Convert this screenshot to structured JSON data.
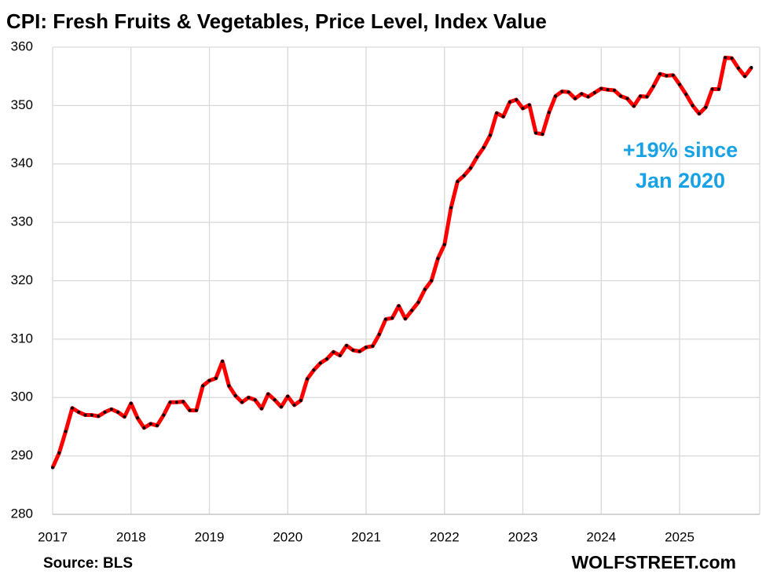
{
  "chart_data": {
    "type": "line",
    "title": "CPI: Fresh Fruits & Vegetables, Price Level, Index Value",
    "categories": [
      "2017",
      null,
      null,
      null,
      null,
      null,
      null,
      null,
      null,
      null,
      null,
      null,
      "2018",
      null,
      null,
      null,
      null,
      null,
      null,
      null,
      null,
      null,
      null,
      null,
      "2019",
      null,
      null,
      null,
      null,
      null,
      null,
      null,
      null,
      null,
      null,
      null,
      "2020",
      null,
      null,
      null,
      null,
      null,
      null,
      null,
      null,
      null,
      null,
      null,
      "2021",
      null,
      null,
      null,
      null,
      null,
      null,
      null,
      null,
      null,
      null,
      null,
      "2022",
      null,
      null,
      null,
      null,
      null,
      null,
      null,
      null,
      null,
      null,
      null,
      "2023",
      null,
      null,
      null,
      null,
      null,
      null,
      null,
      null,
      null,
      null,
      null,
      "2024",
      null,
      null,
      null,
      null,
      null,
      null,
      null,
      null,
      null,
      null,
      null,
      "2025",
      null,
      null,
      null,
      null,
      null,
      null,
      null,
      null,
      null,
      null,
      null
    ],
    "series": [
      {
        "name": "CPI: Fresh Fruits & Vegetables",
        "color": "#ff0000",
        "marker_color": "#000000",
        "values": [
          288,
          290.5,
          294.2,
          298.2,
          297.5,
          297,
          297,
          296.8,
          297.5,
          298,
          297.5,
          296.7,
          299,
          296.5,
          294.8,
          295.5,
          295.2,
          297,
          299.2,
          299.2,
          299.3,
          297.8,
          297.8,
          302,
          302.9,
          303.3,
          306.2,
          302,
          300.3,
          299.2,
          300,
          299.6,
          298.1,
          300.6,
          299.6,
          298.4,
          300.2,
          298.7,
          299.5,
          303.2,
          304.7,
          305.9,
          306.6,
          307.8,
          307.2,
          308.9,
          308.1,
          307.9,
          308.6,
          308.8,
          310.8,
          313.4,
          313.6,
          315.7,
          313.5,
          314.9,
          316.3,
          318.5,
          320,
          323.8,
          326.2,
          332.5,
          337,
          338,
          339.3,
          341.2,
          342.8,
          344.9,
          348.7,
          348.1,
          350.6,
          351,
          349.5,
          350.1,
          345.3,
          345.1,
          348.8,
          351.6,
          352.4,
          352.3,
          351.2,
          352,
          351.5,
          352.2,
          352.9,
          352.7,
          352.6,
          351.6,
          351.2,
          349.9,
          351.6,
          351.5,
          353.3,
          355.4,
          355.1,
          355.2,
          353.6,
          351.9,
          350,
          348.6,
          349.7,
          352.8,
          352.8,
          358.2,
          358.1,
          356.4,
          355,
          356.5
        ]
      }
    ],
    "ylim": [
      280,
      360
    ],
    "yticks": [
      280,
      290,
      300,
      310,
      320,
      330,
      340,
      350,
      360
    ],
    "grid": true,
    "annotation": [
      "+19% since",
      "Jan 2020"
    ],
    "annotation_color": "#17a2e6",
    "source": "Source: BLS",
    "credit": "WOLFSTREET.com"
  }
}
